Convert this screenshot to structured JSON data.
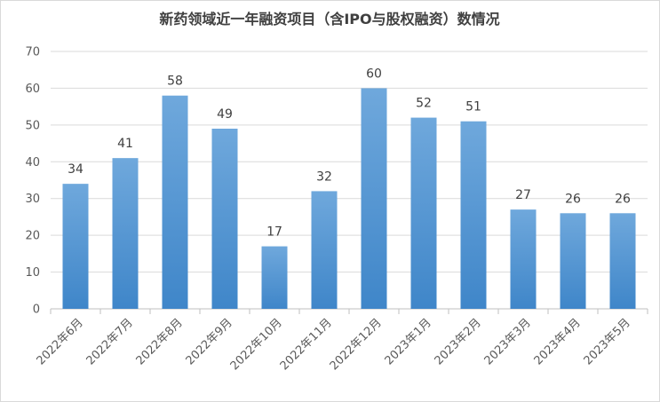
{
  "chart_data": {
    "type": "bar",
    "title": "新药领域近一年融资项目（含IPO与股权融资）数情况",
    "xlabel": "",
    "ylabel": "",
    "categories": [
      "2022年6月",
      "2022年7月",
      "2022年8月",
      "2022年9月",
      "2022年10月",
      "2022年11月",
      "2022年12月",
      "2023年1月",
      "2023年2月",
      "2023年3月",
      "2023年4月",
      "2023年5月"
    ],
    "values": [
      34,
      41,
      58,
      49,
      17,
      32,
      60,
      52,
      51,
      27,
      26,
      26
    ],
    "ylim": [
      0,
      70
    ],
    "yticks": [
      0,
      10,
      20,
      30,
      40,
      50,
      60,
      70
    ],
    "grid": true,
    "legend": "none",
    "data_labels": true,
    "colors": {
      "bar_top": "#6fa8dc",
      "bar_bottom": "#3f86c9",
      "grid": "#d9d9d9",
      "axis": "#bfbfbf"
    }
  }
}
